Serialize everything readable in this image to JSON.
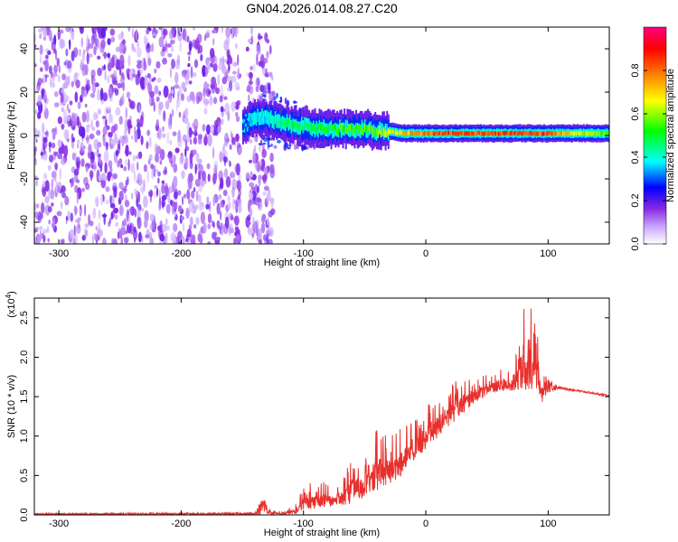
{
  "title": "GN04.2026.014.08.27.C20",
  "chart_data": [
    {
      "type": "heatmap",
      "xlabel": "Height of straight line (km)",
      "ylabel": "Frequency (Hz)",
      "xlim": [
        -320,
        150
      ],
      "ylim": [
        -50,
        50
      ],
      "x_ticks": [
        -300,
        -200,
        -100,
        0,
        100
      ],
      "y_ticks": [
        -40,
        -20,
        0,
        20,
        40
      ],
      "colorbar": {
        "label": "Normalized spectral amplitude",
        "range": [
          0.0,
          1.0
        ],
        "ticks": [
          "0.0",
          "0.2",
          "0.4",
          "0.6",
          "0.8"
        ],
        "tick_values": [
          0.0,
          0.2,
          0.4,
          0.6,
          0.8
        ],
        "colors": [
          "#ffffff",
          "#c9a6ff",
          "#8a2be2",
          "#0000ff",
          "#00ffff",
          "#00ff00",
          "#ffff00",
          "#ff8000",
          "#ff0000",
          "#ff0080"
        ]
      },
      "ridge": {
        "x": [
          -150,
          -140,
          -130,
          -120,
          -110,
          -100,
          -90,
          -80,
          -70,
          -60,
          -50,
          -40,
          -30,
          -20,
          -10,
          0,
          20,
          40,
          60,
          80,
          100,
          120,
          150
        ],
        "frequency": [
          5,
          8,
          8,
          6,
          5,
          4,
          3,
          3,
          3,
          3,
          3,
          2,
          2,
          1,
          1,
          1,
          1,
          1,
          1,
          1,
          1,
          1,
          1
        ],
        "amplitude": [
          0.3,
          0.4,
          0.4,
          0.5,
          0.5,
          0.5,
          0.55,
          0.55,
          0.6,
          0.6,
          0.6,
          0.65,
          0.7,
          0.75,
          0.8,
          0.85,
          0.9,
          0.9,
          0.9,
          0.9,
          0.9,
          0.7,
          0.6
        ]
      },
      "noise_region_x": [
        -320,
        -125
      ]
    },
    {
      "type": "line",
      "xlabel": "Height of straight line (km)",
      "ylabel": "SNR (10 * v/v)",
      "y_multiplier": "(x10",
      "y_multiplier_exp": "4",
      "y_multiplier_close": ")",
      "xlim": [
        -320,
        150
      ],
      "ylim": [
        0,
        2.75
      ],
      "x_ticks": [
        -300,
        -200,
        -100,
        0,
        100
      ],
      "y_ticks": [
        "0.0",
        "0.5",
        "1.0",
        "1.5",
        "2.0",
        "2.5"
      ],
      "y_tick_values": [
        0.0,
        0.5,
        1.0,
        1.5,
        2.0,
        2.5
      ],
      "color": "#e8302c",
      "envelope": {
        "x": [
          -320,
          -140,
          -132,
          -128,
          -120,
          -105,
          -100,
          -90,
          -80,
          -70,
          -60,
          -50,
          -40,
          -30,
          -20,
          -10,
          0,
          10,
          20,
          30,
          40,
          50,
          60,
          70,
          80,
          90,
          95,
          100,
          110,
          120,
          130,
          150
        ],
        "baseline": [
          0.0,
          0.0,
          0.0,
          0.0,
          0.0,
          0.0,
          0.02,
          0.05,
          0.08,
          0.1,
          0.1,
          0.2,
          0.25,
          0.35,
          0.45,
          0.6,
          0.8,
          0.95,
          1.1,
          1.25,
          1.4,
          1.5,
          1.55,
          1.55,
          1.5,
          1.45,
          1.4,
          1.55,
          1.6,
          1.57,
          1.55,
          1.5
        ],
        "peak": [
          0.02,
          0.03,
          0.25,
          0.08,
          0.05,
          0.15,
          0.4,
          0.45,
          0.4,
          0.4,
          0.75,
          0.7,
          1.1,
          1.0,
          1.1,
          1.3,
          1.4,
          1.5,
          1.65,
          1.75,
          1.75,
          1.8,
          1.85,
          1.85,
          2.75,
          2.55,
          1.8,
          1.75,
          1.62,
          1.6,
          1.57,
          1.52
        ]
      }
    }
  ]
}
